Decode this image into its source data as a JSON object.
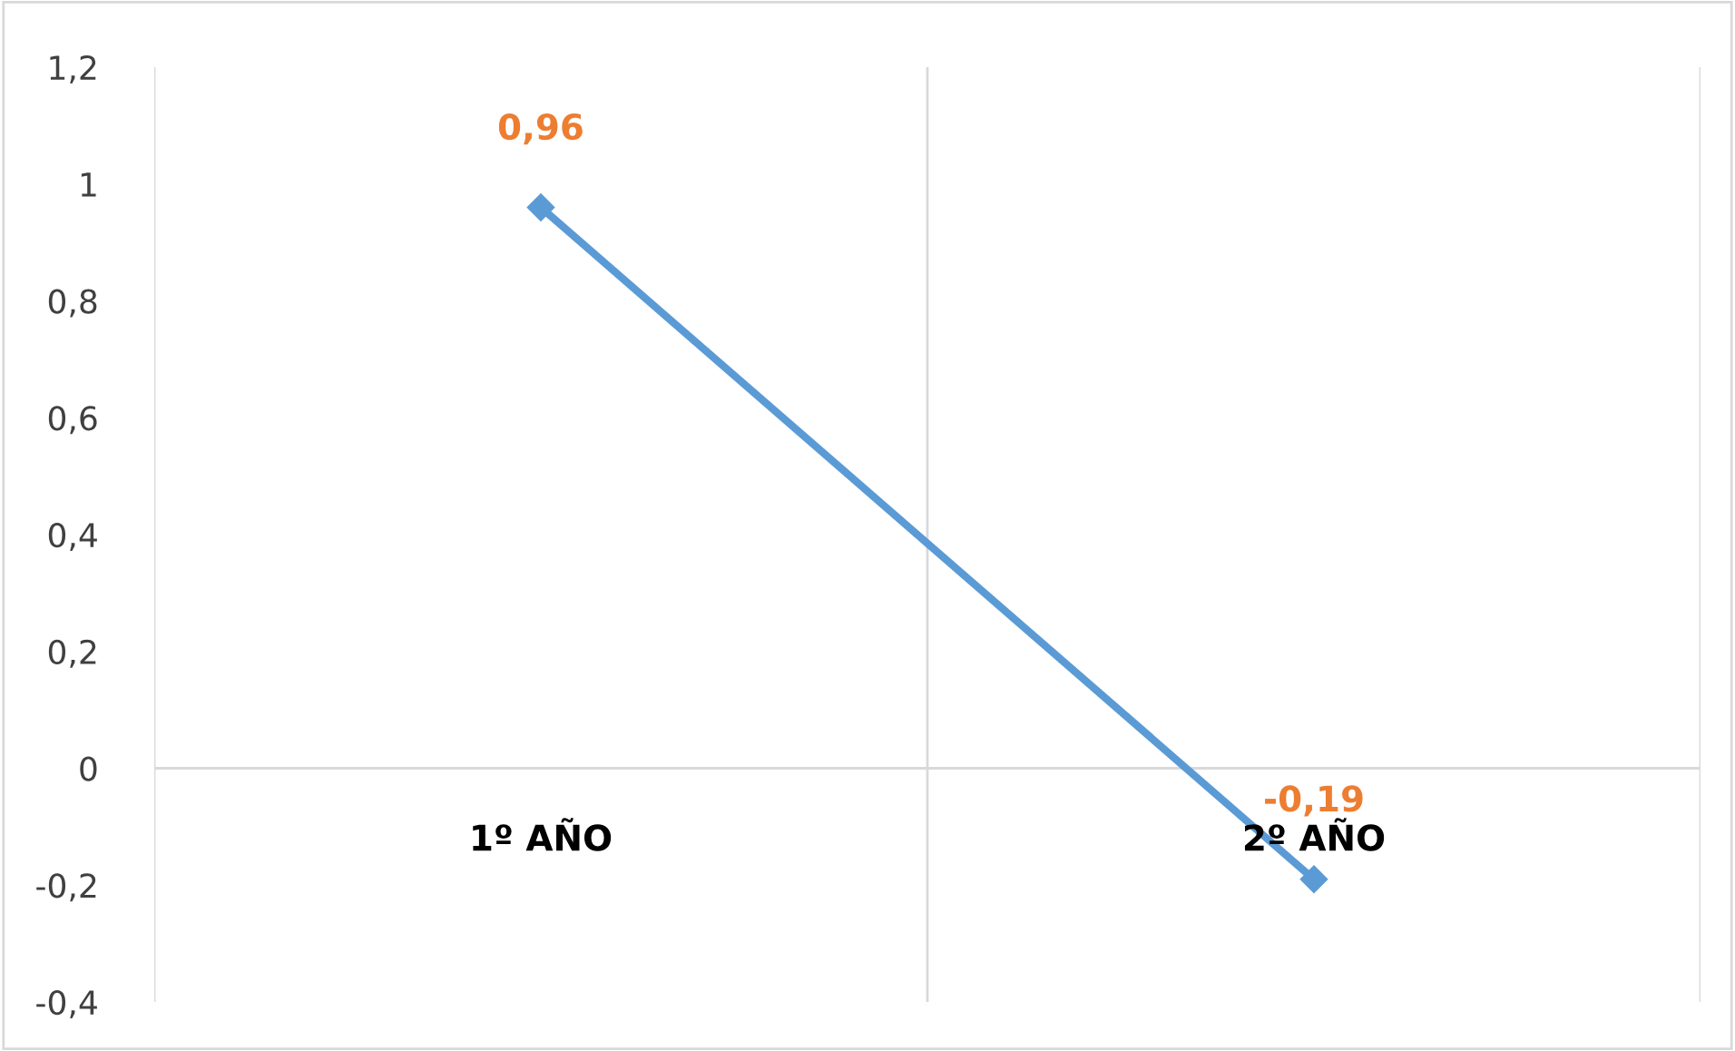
{
  "chart_data": {
    "type": "line",
    "categories": [
      "1º AÑO",
      "2º AÑO"
    ],
    "series": [
      {
        "color": "#5b9bd5",
        "values": [
          0.96,
          -0.19
        ],
        "value_labels": [
          "0,96",
          "-0,19"
        ]
      }
    ],
    "ylim": [
      -0.4,
      1.2
    ],
    "yticks": [
      {
        "value": -0.4,
        "label": "-0,4"
      },
      {
        "value": -0.2,
        "label": "-0,2"
      },
      0,
      {
        "value": 0.2,
        "label": "0,2"
      },
      {
        "value": 0.4,
        "label": "0,4"
      },
      {
        "value": 0.6,
        "label": "0,6"
      },
      {
        "value": 0.8,
        "label": "0,8"
      },
      1,
      {
        "value": 1.2,
        "label": "1,2"
      }
    ],
    "grid": "x",
    "marker": "diamond",
    "line_style": "solid",
    "legend": false
  }
}
